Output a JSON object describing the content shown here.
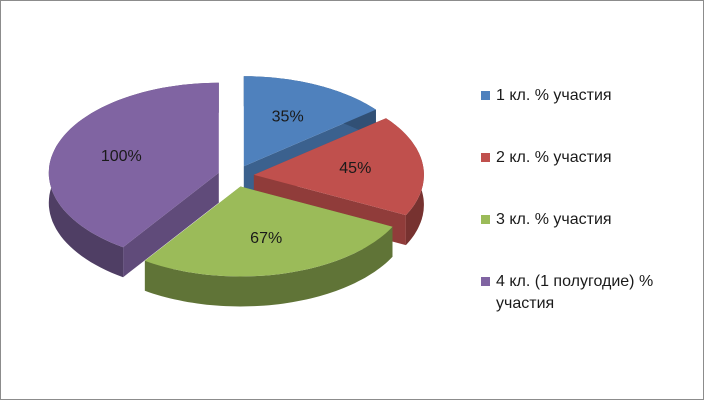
{
  "chart_data": {
    "type": "pie",
    "categories": [
      "1 кл. % участия",
      "2 кл. % участия",
      "3 кл. % участия",
      "4 кл. (1 полугодие) % участия"
    ],
    "values": [
      35,
      45,
      67,
      100
    ],
    "value_labels": [
      "35%",
      "45%",
      "67%",
      "100%"
    ],
    "colors": [
      "#4f81bd",
      "#c0504d",
      "#9bbb59",
      "#8064a2"
    ],
    "legend": "right"
  }
}
